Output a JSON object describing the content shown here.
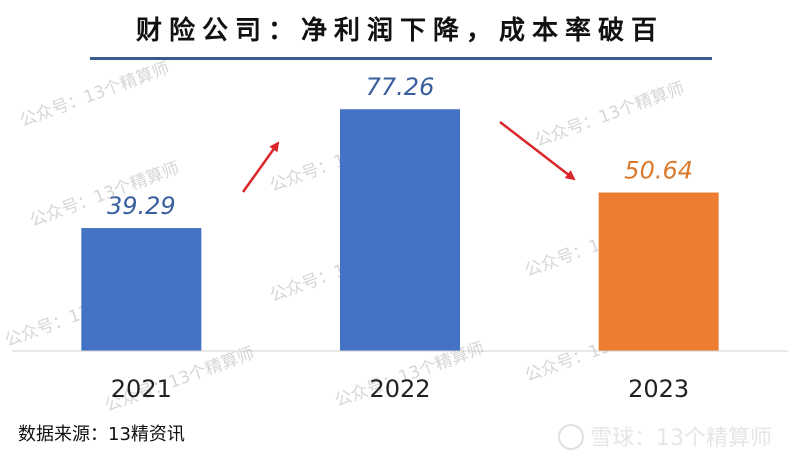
{
  "title": "财险公司：净利润下降，成本率破百",
  "watermark_text": "公众号：13个精算师",
  "source_note": "数据来源：13精资讯",
  "brand": {
    "text": "雪球：13个精算师",
    "icon": "snowball-logo-icon"
  },
  "colors": {
    "bar_blue": "#4472c4",
    "bar_orange": "#ed7d31",
    "label_blue": "#3a5f9e",
    "label_orange": "#d87a2f",
    "arrow": "#d9262b",
    "title_rule": "#3b5b8c"
  },
  "chart_data": {
    "type": "bar",
    "title": "财险公司：净利润下降，成本率破百",
    "xlabel": "",
    "ylabel": "",
    "categories": [
      "2021",
      "2022",
      "2023"
    ],
    "values": [
      39.29,
      77.26,
      50.64
    ],
    "value_labels": [
      "39.29",
      "77.26",
      "50.64"
    ],
    "bar_colors": [
      "#4472c4",
      "#4472c4",
      "#ed7d31"
    ],
    "ylim": [
      0,
      85
    ],
    "grid": false,
    "legend": "none",
    "annotations": [
      "arrow-up-2021-2022",
      "arrow-down-2022-2023"
    ]
  }
}
